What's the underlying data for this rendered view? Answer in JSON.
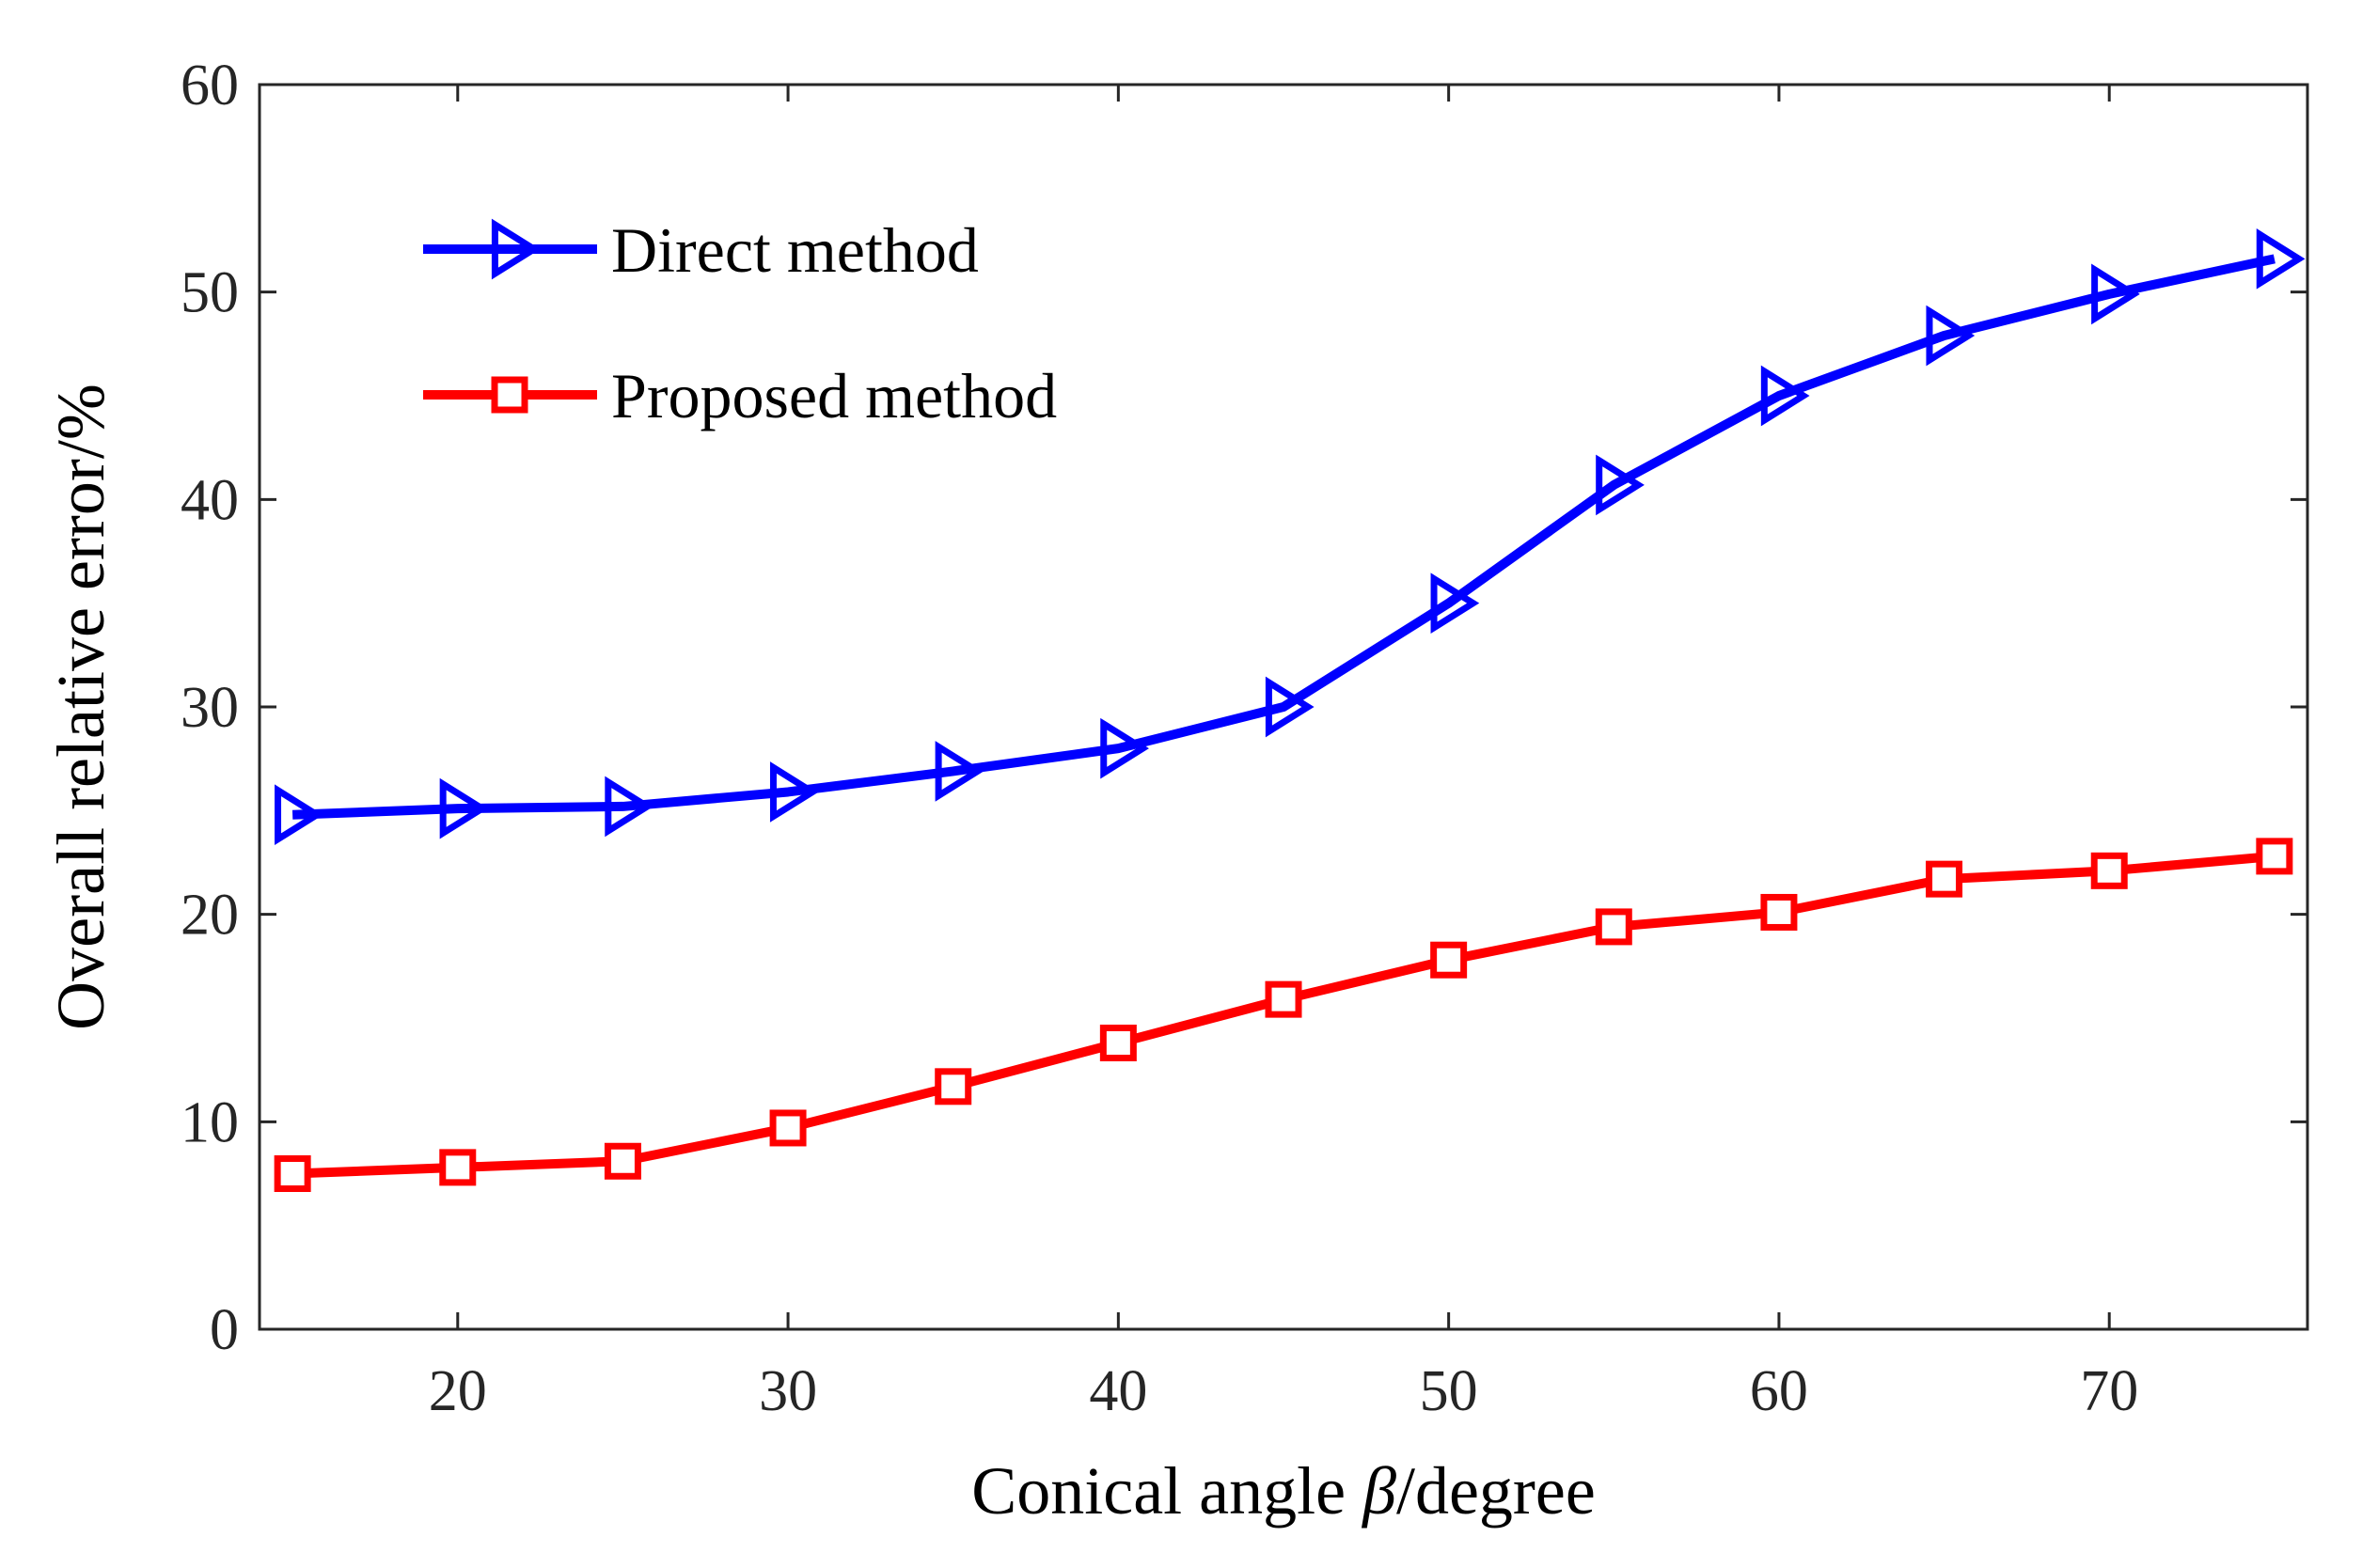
{
  "chart_data": {
    "type": "line",
    "title": "",
    "xlabel": "Conical angle",
    "xlabel_symbol": "β",
    "xlabel_unit": "/degree",
    "ylabel": "Overall relative error/%",
    "xlim": [
      14,
      76
    ],
    "ylim": [
      0,
      60
    ],
    "xticks": [
      20,
      30,
      40,
      50,
      60,
      70
    ],
    "yticks": [
      0,
      10,
      20,
      30,
      40,
      50,
      60
    ],
    "grid": false,
    "legend_position": "top-left",
    "x": [
      15,
      20,
      25,
      30,
      35,
      40,
      45,
      50,
      55,
      60,
      65,
      70,
      75
    ],
    "series": [
      {
        "name": "Direct method",
        "color": "#0000ff",
        "marker": "triangle-right",
        "values": [
          24.8,
          25.1,
          25.2,
          25.9,
          26.9,
          28.0,
          30.0,
          35.0,
          40.7,
          45.0,
          47.9,
          49.9,
          51.6
        ]
      },
      {
        "name": "Proposed method",
        "color": "#ff0000",
        "marker": "square",
        "values": [
          7.5,
          7.8,
          8.1,
          9.7,
          11.7,
          13.8,
          15.9,
          17.8,
          19.4,
          20.1,
          21.7,
          22.1,
          22.8
        ]
      }
    ]
  }
}
